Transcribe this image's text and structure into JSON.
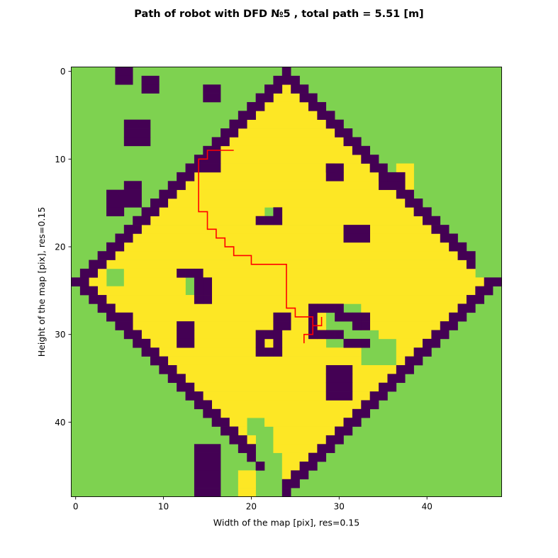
{
  "chart_data": {
    "type": "heatmap",
    "title": "Path of robot with DFD №5 , total path = 5.51 [m]",
    "xlabel": "Width of the map [pix], res=0.15",
    "ylabel": "Height of the map [pix], res=0.15",
    "grid": false,
    "colors": {
      "outside": "#7ed250",
      "wall": "#440154",
      "free": "#fde725",
      "path": "#ff0000"
    },
    "map_size": {
      "cols": 49,
      "rows": 49
    },
    "x_ticks": [
      0,
      10,
      20,
      30,
      40
    ],
    "y_ticks": [
      0,
      10,
      20,
      30,
      40
    ],
    "x_tick_labels": [
      "0",
      "10",
      "20",
      "30",
      "40"
    ],
    "y_tick_labels": [
      "0",
      "10",
      "20",
      "30",
      "40"
    ],
    "wall_thickness": 2,
    "wall_blocks": [
      [
        13,
        15,
        6,
        7
      ],
      [
        10,
        11,
        15,
        16
      ],
      [
        0,
        1,
        5,
        6
      ],
      [
        1,
        2,
        8,
        9
      ],
      [
        2,
        3,
        15,
        16
      ],
      [
        6,
        8,
        6,
        8
      ],
      [
        14,
        16,
        4,
        5
      ],
      [
        18,
        19,
        31,
        33
      ],
      [
        28,
        29,
        5,
        6
      ],
      [
        28,
        29,
        23,
        24
      ],
      [
        29,
        31,
        12,
        13
      ],
      [
        34,
        37,
        29,
        31
      ],
      [
        43,
        48,
        14,
        16
      ],
      [
        11,
        12,
        29,
        30
      ],
      [
        12,
        13,
        35,
        36
      ],
      [
        12,
        14,
        37,
        38
      ]
    ],
    "free_blocks": [
      [
        11,
        13,
        37,
        38
      ],
      [
        39,
        42,
        21,
        23
      ],
      [
        20,
        23,
        17,
        19
      ],
      [
        46,
        48,
        19,
        20
      ]
    ],
    "outside_blocks": [
      [
        16,
        17,
        22,
        23
      ],
      [
        22,
        23,
        46,
        48
      ],
      [
        23,
        24,
        4,
        5
      ],
      [
        23,
        25,
        13,
        14
      ],
      [
        27,
        31,
        29,
        32
      ],
      [
        30,
        31,
        32,
        34
      ],
      [
        31,
        33,
        33,
        36
      ],
      [
        40,
        41,
        20,
        21
      ],
      [
        41,
        44,
        21,
        22
      ],
      [
        44,
        48,
        22,
        23
      ]
    ],
    "obstacles": [
      {
        "kind": "block",
        "cells": [
          [
            29,
            11
          ],
          [
            35,
            12
          ],
          [
            37,
            12
          ],
          [
            37,
            13
          ],
          [
            21,
            17
          ],
          [
            22,
            17
          ],
          [
            23,
            17
          ],
          [
            23,
            16
          ]
        ]
      },
      {
        "kind": "block",
        "cells": [
          [
            12,
            23
          ],
          [
            13,
            23
          ],
          [
            14,
            23
          ],
          [
            14,
            24
          ],
          [
            15,
            24
          ],
          [
            14,
            25
          ],
          [
            15,
            25
          ],
          [
            14,
            26
          ],
          [
            15,
            26
          ]
        ]
      },
      {
        "kind": "frame",
        "cells": [
          [
            27,
            27
          ],
          [
            28,
            27
          ],
          [
            29,
            27
          ],
          [
            30,
            27
          ],
          [
            27,
            28
          ],
          [
            27,
            29
          ],
          [
            27,
            30
          ],
          [
            28,
            30
          ],
          [
            29,
            30
          ],
          [
            30,
            30
          ],
          [
            30,
            28
          ],
          [
            31,
            28
          ],
          [
            32,
            28
          ],
          [
            33,
            28
          ],
          [
            33,
            29
          ],
          [
            32,
            29
          ],
          [
            31,
            31
          ],
          [
            32,
            31
          ],
          [
            33,
            31
          ]
        ]
      },
      {
        "kind": "frame",
        "cells": [
          [
            21,
            30
          ],
          [
            22,
            30
          ],
          [
            23,
            30
          ],
          [
            21,
            31
          ],
          [
            23,
            31
          ],
          [
            21,
            32
          ],
          [
            22,
            32
          ],
          [
            23,
            32
          ]
        ]
      }
    ],
    "path": [
      [
        18,
        9
      ],
      [
        15,
        9
      ],
      [
        15,
        10
      ],
      [
        14,
        10
      ],
      [
        14,
        16
      ],
      [
        15,
        16
      ],
      [
        15,
        18
      ],
      [
        16,
        18
      ],
      [
        16,
        19
      ],
      [
        17,
        19
      ],
      [
        17,
        20
      ],
      [
        18,
        20
      ],
      [
        18,
        21
      ],
      [
        20,
        21
      ],
      [
        20,
        22
      ],
      [
        24,
        22
      ],
      [
        24,
        27
      ],
      [
        25,
        27
      ],
      [
        25,
        28
      ],
      [
        27,
        28
      ],
      [
        27,
        29
      ],
      [
        28,
        29
      ],
      [
        28,
        28
      ],
      [
        28,
        29
      ],
      [
        27,
        29
      ],
      [
        27,
        30
      ],
      [
        26,
        30
      ],
      [
        26,
        31
      ]
    ]
  }
}
